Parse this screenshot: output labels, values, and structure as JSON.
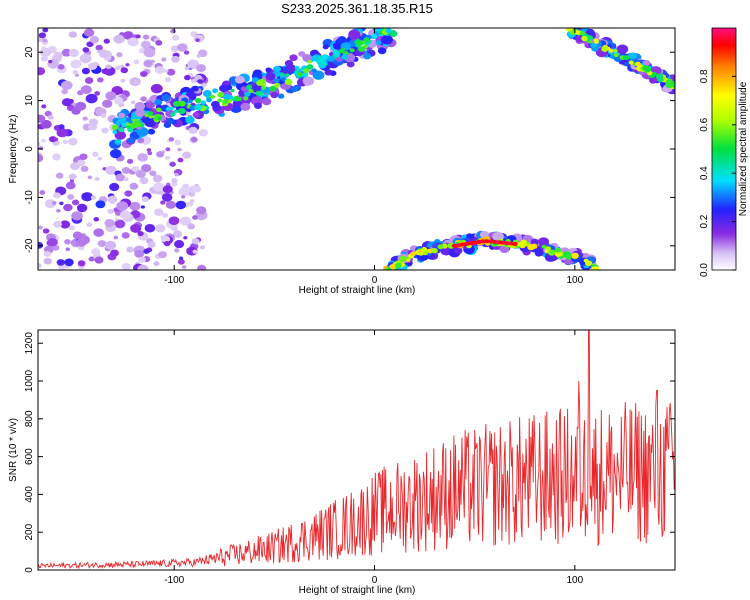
{
  "title": "S233.2025.361.18.35.R15",
  "chart_data": [
    {
      "type": "heatmap",
      "xlabel": "Height of straight line (km)",
      "ylabel": "Frequency (Hz)",
      "xlim": [
        -168,
        150
      ],
      "ylim": [
        -25,
        25
      ],
      "xticks": [
        -100,
        0,
        100
      ],
      "yticks": [
        -20,
        -10,
        0,
        10,
        20
      ],
      "colorbar": {
        "label": "Normalized spectral amplitude",
        "range": [
          0,
          1
        ],
        "ticks": [
          0.0,
          0.2,
          0.4,
          0.6,
          0.8
        ],
        "colormap": "rainbow (white → violet → blue → cyan → green → yellow → red → magenta)"
      },
      "features": [
        {
          "name": "rising-trace",
          "x": [
            -130,
            -100,
            -60,
            -20,
            0,
            10
          ],
          "y": [
            4,
            8,
            12,
            19,
            23,
            25
          ]
        },
        {
          "name": "upper-right-trace",
          "x": [
            97,
            120,
            150
          ],
          "y": [
            25,
            20,
            13
          ]
        },
        {
          "name": "lower-arc",
          "x": [
            5,
            25,
            55,
            80,
            105,
            112
          ],
          "y": [
            -25,
            -21,
            -19,
            -20,
            -23,
            -25
          ]
        },
        {
          "name": "noise-region",
          "x": [
            -168,
            -95
          ],
          "y": [
            -25,
            25
          ]
        }
      ]
    },
    {
      "type": "line",
      "xlabel": "Height of straight line (km)",
      "ylabel": "SNR (10 * v/v)",
      "xlim": [
        -168,
        150
      ],
      "ylim": [
        0,
        1270
      ],
      "xticks": [
        -100,
        0,
        100
      ],
      "yticks": [
        0,
        200,
        400,
        600,
        800,
        1000,
        1200
      ],
      "color": "#e8282c",
      "trend": {
        "x": [
          -168,
          -120,
          -90,
          -70,
          -50,
          -30,
          -10,
          0,
          20,
          40,
          60,
          80,
          100,
          120,
          150
        ],
        "y": [
          22,
          30,
          40,
          80,
          120,
          180,
          250,
          300,
          360,
          420,
          450,
          480,
          500,
          510,
          520
        ]
      },
      "spikes": {
        "x": [
          107,
          102,
          141,
          148
        ],
        "y": [
          1270,
          1000,
          950,
          800
        ]
      }
    }
  ]
}
